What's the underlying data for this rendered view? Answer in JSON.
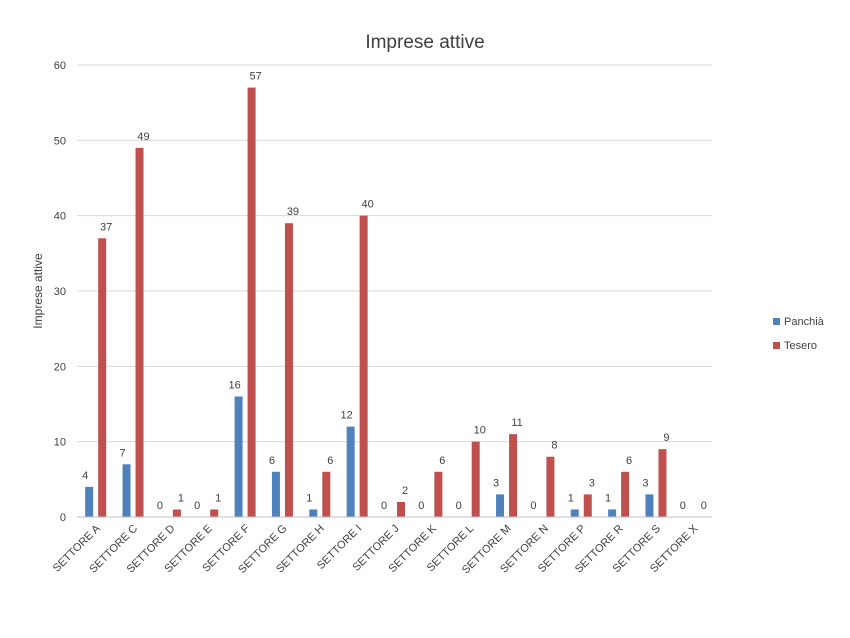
{
  "chart_data": {
    "type": "bar",
    "title": "Imprese attive",
    "xlabel": "",
    "ylabel": "Imprese attive",
    "ylim": [
      0,
      60
    ],
    "yticks": [
      0,
      10,
      20,
      30,
      40,
      50,
      60
    ],
    "grid": true,
    "legend_position": "right",
    "categories": [
      "SETTORE A",
      "SETTORE C",
      "SETTORE D",
      "SETTORE E",
      "SETTORE F",
      "SETTORE G",
      "SETTORE H",
      "SETTORE I",
      "SETTORE J",
      "SETTORE K",
      "SETTORE L",
      "SETTORE M",
      "SETTORE N",
      "SETTORE P",
      "SETTORE R",
      "SETTORE S",
      "SETTORE X"
    ],
    "series": [
      {
        "name": "Panchià",
        "color": "#4f81bd",
        "values": [
          4,
          7,
          0,
          0,
          16,
          6,
          1,
          12,
          0,
          0,
          0,
          3,
          0,
          1,
          1,
          3,
          0
        ]
      },
      {
        "name": "Tesero",
        "color": "#c0504d",
        "values": [
          37,
          49,
          1,
          1,
          57,
          39,
          6,
          40,
          2,
          6,
          10,
          11,
          8,
          3,
          6,
          9,
          0
        ]
      }
    ]
  }
}
